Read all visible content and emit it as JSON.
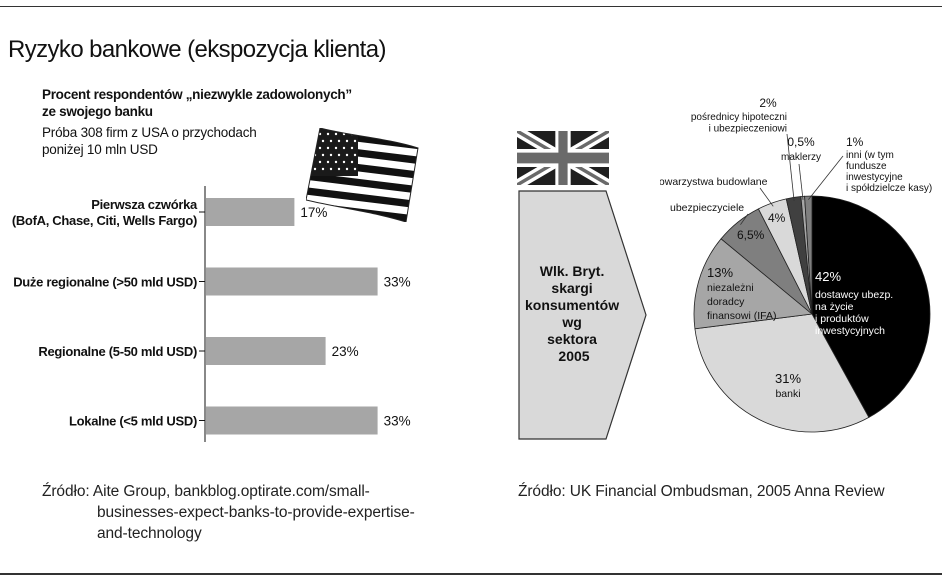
{
  "title": "Ryzyko bankowe (ekspozycja klienta)",
  "us_panel": {
    "subtitle_line1": "Procent respondentów „niezwykle zadowolonych”",
    "subtitle_line2": "ze swojego banku",
    "sample_line1": "Próba 308 firm z USA o przychodach",
    "sample_line2": "poniżej 10 mln USD",
    "flag_icon": "us-flag-icon",
    "source_line1": "Źródło: Aite Group, bankblog.optirate.com/small-",
    "source_line2": "businesses-expect-banks-to-provide-expertise-",
    "source_line3": "and-technology"
  },
  "uk_panel": {
    "flag_icon": "uk-flag-icon",
    "arrow_label": [
      "Wlk. Bryt.",
      "skargi",
      "konsumentów",
      "wg",
      "sektora",
      "2005"
    ],
    "source": "Źródło: UK Financial Ombudsman, 2005 Anna Review"
  },
  "colors": {
    "bar": "#a6a6a6",
    "arrow_fill": "#d9d9d9",
    "slice_black": "#000000",
    "slice_light": "#d9d9d9",
    "slice_mid": "#a6a6a6",
    "slice_dark": "#7f7f7f",
    "slice_darkest": "#404040"
  },
  "chart_data": [
    {
      "type": "bar",
      "orientation": "horizontal",
      "title": "Procent respondentów „niezwykle zadowolonych” ze swojego banku",
      "categories": [
        [
          "Pierwsza czwórka",
          "(BofA, Chase, Citi, Wells Fargo)"
        ],
        [
          "Duże regionalne (>50 mld USD)"
        ],
        [
          "Regionalne (5-50 mld USD)"
        ],
        [
          "Lokalne (<5 mld USD)"
        ]
      ],
      "values": [
        17,
        33,
        23,
        33
      ],
      "value_labels": [
        "17%",
        "33%",
        "23%",
        "33%"
      ],
      "xlim": [
        0,
        40
      ],
      "grid": false
    },
    {
      "type": "pie",
      "title": "Wlk. Bryt. skargi konsumentów wg sektora 2005",
      "slices": [
        {
          "pct_label": "42%",
          "label": [
            "dostawcy ubezp.",
            "na życie",
            "i produktów",
            "inwestycyjnych"
          ],
          "value": 42,
          "color": "#000000",
          "text_color": "#ffffff"
        },
        {
          "pct_label": "31%",
          "label": [
            "banki"
          ],
          "value": 31,
          "color": "#d9d9d9",
          "text_color": "#111111"
        },
        {
          "pct_label": "13%",
          "label": [
            "niezależni",
            "doradcy",
            "finansowi (IFA)"
          ],
          "value": 13,
          "color": "#a6a6a6",
          "text_color": "#111111"
        },
        {
          "pct_label": "6,5%",
          "label": [
            "ubezpieczyciele"
          ],
          "value": 6.5,
          "color": "#7f7f7f",
          "text_color": "#111111"
        },
        {
          "pct_label": "4%",
          "label": [
            "towarzystwa budowlane"
          ],
          "value": 4,
          "color": "#d9d9d9",
          "text_color": "#111111"
        },
        {
          "pct_label": "2%",
          "label": [
            "pośrednicy hipoteczni",
            "i ubezpieczeniowi"
          ],
          "value": 2,
          "color": "#404040",
          "text_color": "#111111"
        },
        {
          "pct_label": "0,5%",
          "label": [
            "maklerzy"
          ],
          "value": 0.5,
          "color": "#a6a6a6",
          "text_color": "#111111"
        },
        {
          "pct_label": "1%",
          "label": [
            "inni (w tym",
            "fundusze",
            "inwestycyjne",
            "i spółdzielcze kasy)"
          ],
          "value": 1,
          "color": "#7f7f7f",
          "text_color": "#111111"
        }
      ]
    }
  ]
}
